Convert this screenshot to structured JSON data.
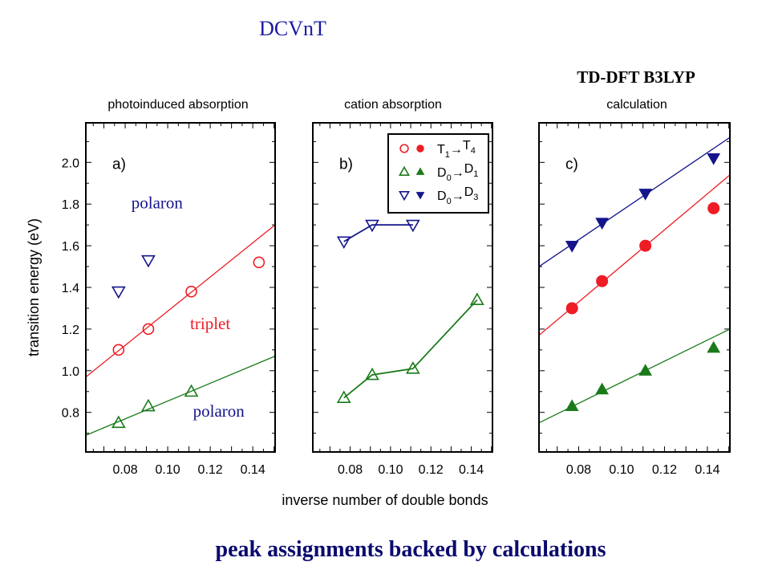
{
  "header": {
    "title": "DCVnT",
    "calc_title": "TD-DFT B3LYP"
  },
  "footer": {
    "caption": "peak assignments backed by calculations"
  },
  "colors": {
    "red": "#ee1c24",
    "green": "#1a7a1a",
    "blue": "#14148c",
    "title_blue": "#1a1aa6",
    "caption_navy": "#0a0a6e"
  },
  "chart_data": [
    {
      "type": "scatter",
      "panel_label": "a)",
      "title": "photoinduced absorption",
      "xlabel": "inverse number of double bonds",
      "ylabel": "transition energy (eV)",
      "xlim": [
        0.0615,
        0.1505
      ],
      "ylim": [
        0.61,
        2.19
      ],
      "xticks": [
        "0.08",
        "0.10",
        "0.12",
        "0.14"
      ],
      "yticks": [
        "0.8",
        "1.0",
        "1.2",
        "1.4",
        "1.6",
        "1.8",
        "2.0"
      ],
      "annotations": [
        {
          "text": "polaron",
          "color": "blue",
          "x": 0.095,
          "y": 1.78
        },
        {
          "text": "triplet",
          "color": "red",
          "x": 0.12,
          "y": 1.2
        },
        {
          "text": "polaron",
          "color": "blue",
          "x": 0.124,
          "y": 0.78
        }
      ],
      "series": [
        {
          "name": "T1→T4",
          "marker": "circle-open",
          "color": "red",
          "x": [
            0.0769,
            0.0909,
            0.1111,
            0.1429
          ],
          "y": [
            1.1,
            1.2,
            1.38,
            1.52
          ],
          "fit": [
            [
              0.0615,
              0.97
            ],
            [
              0.1505,
              1.7
            ]
          ],
          "connect": false
        },
        {
          "name": "D0→D1",
          "marker": "triangle-up-open",
          "color": "green",
          "x": [
            0.0769,
            0.0909,
            0.1111
          ],
          "y": [
            0.75,
            0.83,
            0.9
          ],
          "fit": [
            [
              0.0615,
              0.69
            ],
            [
              0.1505,
              1.07
            ]
          ],
          "connect": false
        },
        {
          "name": "D0→D3",
          "marker": "triangle-down-open",
          "color": "blue",
          "x": [
            0.0769,
            0.0909
          ],
          "y": [
            1.38,
            1.53
          ],
          "fit": null,
          "connect": false
        }
      ]
    },
    {
      "type": "line",
      "panel_label": "b)",
      "title": "cation absorption",
      "xlim": [
        0.0615,
        0.1505
      ],
      "ylim": [
        0.61,
        2.19
      ],
      "xticks": [
        "0.08",
        "0.10",
        "0.12",
        "0.14"
      ],
      "legend": {
        "placement": "top-right",
        "entries": [
          {
            "label": "T",
            "sub1": "1",
            "arrow": "→",
            "label2": "T",
            "sub2": "4",
            "color": "red",
            "open": "circle-open",
            "filled": "circle"
          },
          {
            "label": "D",
            "sub1": "0",
            "arrow": "→",
            "label2": "D",
            "sub2": "1",
            "color": "green",
            "open": "triangle-up-open",
            "filled": "triangle-up"
          },
          {
            "label": "D",
            "sub1": "0",
            "arrow": "→",
            "label2": "D",
            "sub2": "3",
            "color": "blue",
            "open": "triangle-down-open",
            "filled": "triangle-down"
          }
        ]
      },
      "series": [
        {
          "name": "D0→D3",
          "marker": "triangle-down-open",
          "color": "blue",
          "x": [
            0.0769,
            0.0909,
            0.1111
          ],
          "y": [
            1.62,
            1.7,
            1.7
          ],
          "fit": null,
          "connect": true
        },
        {
          "name": "D0→D1",
          "marker": "triangle-up-open",
          "color": "green",
          "x": [
            0.0769,
            0.0909,
            0.1111,
            0.1429
          ],
          "y": [
            0.87,
            0.98,
            1.01,
            1.34
          ],
          "fit": null,
          "connect": true
        }
      ]
    },
    {
      "type": "scatter",
      "panel_label": "c)",
      "title": "calculation",
      "xlim": [
        0.0615,
        0.1505
      ],
      "ylim": [
        0.61,
        2.19
      ],
      "xticks": [
        "0.08",
        "0.10",
        "0.12",
        "0.14"
      ],
      "series": [
        {
          "name": "D0→D3",
          "marker": "triangle-down",
          "color": "blue",
          "x": [
            0.0769,
            0.0909,
            0.1111,
            0.1429
          ],
          "y": [
            1.6,
            1.71,
            1.85,
            2.02
          ],
          "fit": [
            [
              0.0615,
              1.5
            ],
            [
              0.1505,
              2.12
            ]
          ],
          "connect": false
        },
        {
          "name": "T1→T4",
          "marker": "circle",
          "color": "red",
          "x": [
            0.0769,
            0.0909,
            0.1111,
            0.1429
          ],
          "y": [
            1.3,
            1.43,
            1.6,
            1.78
          ],
          "fit": [
            [
              0.0615,
              1.17
            ],
            [
              0.1505,
              1.94
            ]
          ],
          "connect": false
        },
        {
          "name": "D0→D1",
          "marker": "triangle-up",
          "color": "green",
          "x": [
            0.0769,
            0.0909,
            0.1111,
            0.1429
          ],
          "y": [
            0.83,
            0.91,
            1.0,
            1.11
          ],
          "fit": [
            [
              0.0615,
              0.75
            ],
            [
              0.1505,
              1.2
            ]
          ],
          "connect": false
        }
      ]
    }
  ]
}
